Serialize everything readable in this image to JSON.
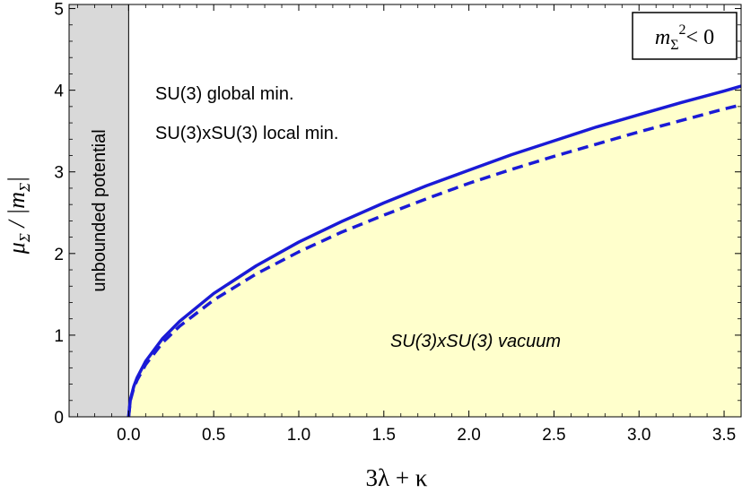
{
  "chart_data": {
    "type": "area",
    "xlabel": "3λ + κ",
    "ylabel": "μ_Σ / |m_Σ|",
    "xlim": [
      -0.35,
      3.6
    ],
    "ylim": [
      0,
      5.05
    ],
    "x_ticks": [
      "0.0",
      "0.5",
      "1.0",
      "1.5",
      "2.0",
      "2.5",
      "3.0",
      "3.5"
    ],
    "y_ticks": [
      "0",
      "1",
      "2",
      "3",
      "4",
      "5"
    ],
    "grid": false,
    "legend_box": {
      "label": "m_Σ² < 0",
      "position": "top-right"
    },
    "shaded_region_unbounded": {
      "x_range": [
        -0.35,
        0.0
      ],
      "color": "#d9d9d9",
      "label": "unbounded  potential"
    },
    "series": [
      {
        "style": "solid",
        "color": "#1a1ad6",
        "x": [
          0,
          0.01,
          0.03,
          0.05,
          0.1,
          0.2,
          0.3,
          0.5,
          0.75,
          1.0,
          1.25,
          1.5,
          1.75,
          2.0,
          2.25,
          2.5,
          2.75,
          3.0,
          3.25,
          3.5,
          3.6
        ],
        "y": [
          0,
          0.21,
          0.37,
          0.48,
          0.68,
          0.96,
          1.17,
          1.51,
          1.85,
          2.14,
          2.39,
          2.62,
          2.83,
          3.02,
          3.21,
          3.38,
          3.55,
          3.7,
          3.85,
          3.99,
          4.05
        ]
      },
      {
        "style": "dashed",
        "color": "#1a1ad6",
        "x": [
          0,
          0.01,
          0.03,
          0.05,
          0.1,
          0.2,
          0.3,
          0.5,
          0.75,
          1.0,
          1.25,
          1.5,
          1.75,
          2.0,
          2.25,
          2.5,
          2.75,
          3.0,
          3.25,
          3.5,
          3.6
        ],
        "y": [
          0,
          0.2,
          0.35,
          0.45,
          0.64,
          0.91,
          1.11,
          1.43,
          1.75,
          2.02,
          2.26,
          2.47,
          2.67,
          2.86,
          3.03,
          3.19,
          3.34,
          3.49,
          3.63,
          3.77,
          3.82
        ]
      }
    ],
    "fill_below_curve": {
      "color": "#ffffcc",
      "under_series": 0
    },
    "annotations": {
      "upper_line1": "SU(3) global min.",
      "upper_line2": "SU(3)xSU(3) local min.",
      "lower": "SU(3)xSU(3)  vacuum"
    }
  }
}
